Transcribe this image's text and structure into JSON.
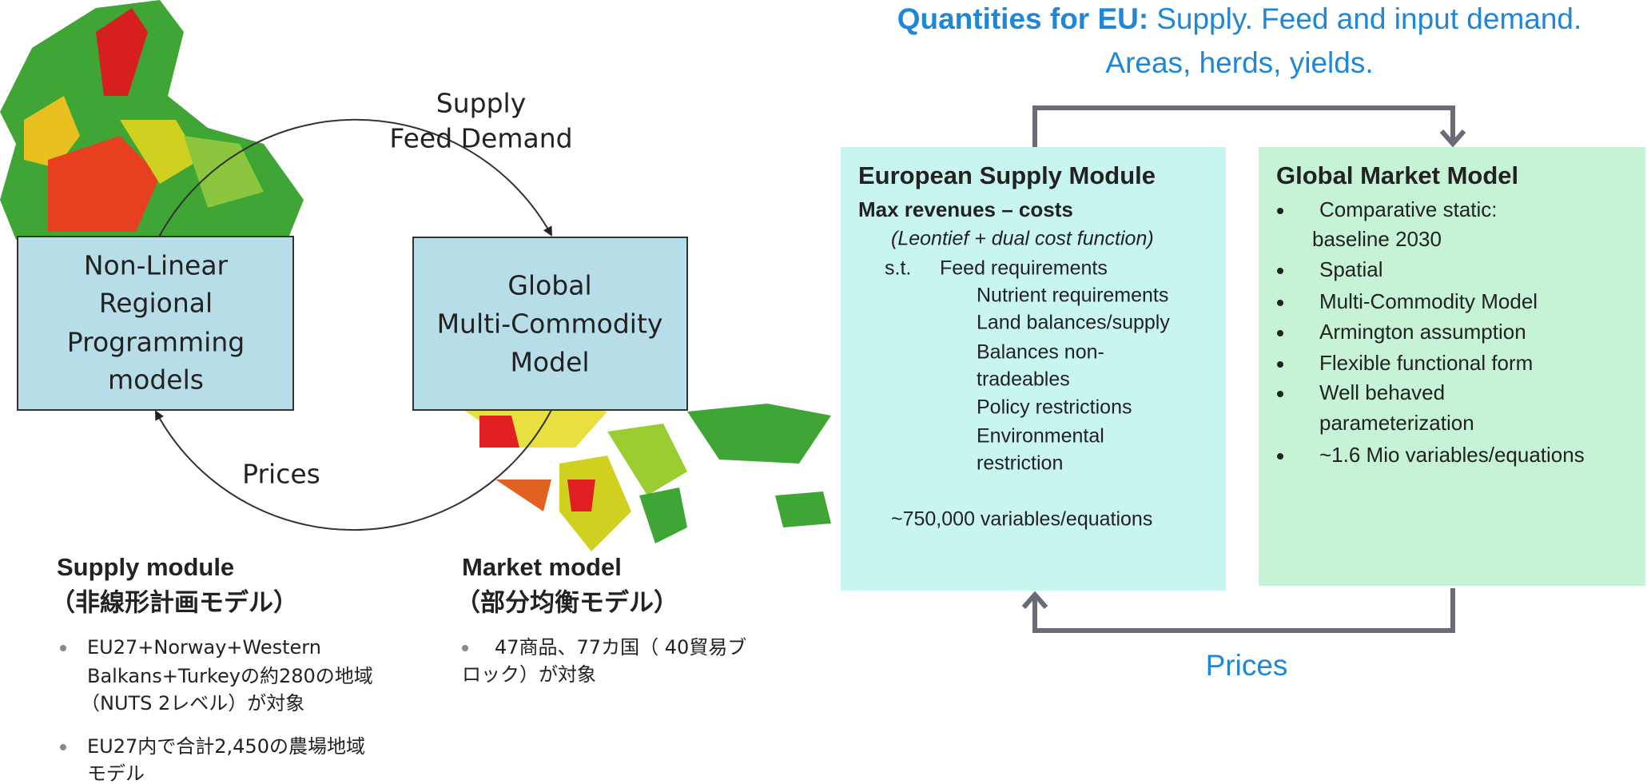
{
  "left": {
    "cycle": {
      "top_label": [
        "Supply",
        "Feed Demand"
      ],
      "bottom_label": "Prices"
    },
    "boxes": [
      {
        "lines": [
          "Non-Linear",
          "Regional",
          "Programming",
          "models"
        ]
      },
      {
        "lines": [
          "Global",
          "Multi-Commodity",
          "Model"
        ]
      }
    ],
    "modules": [
      {
        "title": "Supply module",
        "subtitle": "（非線形計画モデル）",
        "bullets": [
          [
            "EU27+Norway+Western",
            "Balkans+Turkeyの約280の地域",
            "（NUTS 2レベル）が対象"
          ],
          [
            "EU27内で合計2,450の農場地域",
            "モデル"
          ]
        ]
      },
      {
        "title": "Market model",
        "subtitle": "（部分均衡モデル）",
        "bullets": [
          [
            "47商品、77カ国（ 40貿易ブ",
            "ロック）が対象"
          ]
        ]
      }
    ]
  },
  "right": {
    "heading": {
      "bold": "Quantities for EU:",
      "text": "Supply. Feed and input demand.",
      "line2": "Areas, herds, yields."
    },
    "supply_module": {
      "title": "European Supply Module",
      "objective": "Max revenues – costs",
      "note": "(Leontief + dual cost function)",
      "st": "s.t.",
      "constraints": [
        [
          "Feed requirements"
        ],
        [
          "Nutrient requirements"
        ],
        [
          "Land balances/supply"
        ],
        [
          "Balances non-",
          "tradeables"
        ],
        [
          "Policy restrictions"
        ],
        [
          "Environmental",
          "restriction"
        ]
      ],
      "size": "~750,000 variables/equations"
    },
    "market_model": {
      "title": "Global Market Model",
      "bullets": [
        [
          "Comparative static:",
          "baseline 2030"
        ],
        [
          "Spatial"
        ],
        [
          "Multi-Commodity Model"
        ],
        [
          "Armington assumption"
        ],
        [
          "Flexible functional form"
        ],
        [
          "Well behaved",
          "parameterization"
        ],
        [
          "~1.6 Mio variables/equations"
        ]
      ]
    },
    "prices": "Prices"
  }
}
